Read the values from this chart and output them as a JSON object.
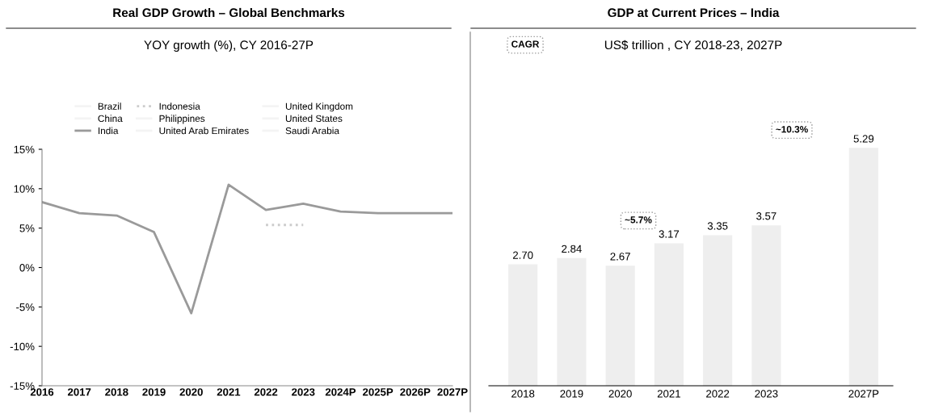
{
  "chart_data": [
    {
      "type": "line",
      "title": "Real GDP Growth – Global Benchmarks",
      "subtitle": "YOY growth (%), CY 2016-27P",
      "categories": [
        "2016",
        "2017",
        "2018",
        "2019",
        "2020",
        "2021",
        "2022",
        "2023",
        "2024P",
        "2025P",
        "2026P",
        "2027P"
      ],
      "series": [
        {
          "name": "Brazil",
          "color": "#f4f4f4",
          "values": [
            null,
            null,
            null,
            null,
            null,
            null,
            null,
            null,
            null,
            null,
            null,
            null
          ]
        },
        {
          "name": "China",
          "color": "#f4f4f4",
          "values": [
            null,
            null,
            null,
            null,
            null,
            null,
            null,
            null,
            null,
            null,
            null,
            null
          ]
        },
        {
          "name": "India",
          "color": "#9a9a9a",
          "values": [
            8.3,
            6.9,
            6.6,
            4.5,
            -5.8,
            10.5,
            7.3,
            8.1,
            7.1,
            6.9,
            6.9,
            6.9
          ]
        },
        {
          "name": "Indonesia",
          "color": "#cccccc",
          "line_style": "dotted",
          "values": [
            null,
            null,
            null,
            null,
            null,
            null,
            5.4,
            5.4,
            null,
            null,
            null,
            null
          ]
        },
        {
          "name": "Philippines",
          "color": "#f4f4f4",
          "values": [
            null,
            null,
            null,
            null,
            null,
            null,
            null,
            null,
            null,
            null,
            null,
            null
          ]
        },
        {
          "name": "United Arab Emirates",
          "color": "#f4f4f4",
          "values": [
            null,
            null,
            null,
            null,
            null,
            null,
            null,
            null,
            null,
            null,
            null,
            null
          ]
        },
        {
          "name": "United Kingdom",
          "color": "#f4f4f4",
          "values": [
            null,
            null,
            null,
            null,
            null,
            null,
            null,
            null,
            null,
            null,
            null,
            null
          ]
        },
        {
          "name": "United States",
          "color": "#f4f4f4",
          "values": [
            null,
            null,
            null,
            null,
            null,
            null,
            null,
            null,
            null,
            null,
            null,
            null
          ]
        },
        {
          "name": "Saudi Arabia",
          "color": "#f4f4f4",
          "values": [
            null,
            null,
            null,
            null,
            null,
            null,
            null,
            null,
            null,
            null,
            null,
            null
          ]
        }
      ],
      "ylim": [
        -15,
        15
      ],
      "yticks": [
        {
          "value": -15,
          "label": "-15%"
        },
        {
          "value": -10,
          "label": "-10%"
        },
        {
          "value": -5,
          "label": "-5%"
        },
        {
          "value": 0,
          "label": "0%"
        },
        {
          "value": 5,
          "label": "5%"
        },
        {
          "value": 10,
          "label": "10%"
        },
        {
          "value": 15,
          "label": "15%"
        }
      ],
      "legend": "top",
      "grid": false,
      "line_style": "solid"
    },
    {
      "type": "bar",
      "title": "GDP at Current Prices – India",
      "subtitle": "US$ trillion , CY 2018-23, 2027P",
      "categories": [
        "2018",
        "2019",
        "2020",
        "2021",
        "2022",
        "2023",
        null,
        "2027P"
      ],
      "values": [
        2.7,
        2.84,
        2.67,
        3.17,
        3.35,
        3.57,
        null,
        5.29
      ],
      "value_labels": [
        "2.70",
        "2.84",
        "2.67",
        "3.17",
        "3.35",
        "3.57",
        null,
        "5.29"
      ],
      "color": "#eeeeee",
      "annotations": [
        "CAGR",
        "~5.7%",
        "~10.3%"
      ],
      "grid": false
    }
  ]
}
